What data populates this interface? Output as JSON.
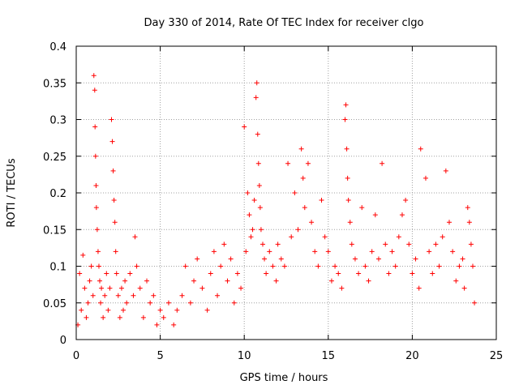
{
  "chart_data": {
    "type": "scatter",
    "title": "Day 330 of 2014, Rate Of TEC Index for receiver clgo",
    "xlabel": "GPS time / hours",
    "ylabel": "ROTI / TECUs",
    "xlim": [
      0,
      25
    ],
    "ylim": [
      0,
      0.4
    ],
    "grid": true,
    "marker": "+",
    "color": "#ff0000",
    "x_ticks": [
      0,
      5,
      10,
      15,
      20,
      25
    ],
    "x_tick_labels": [
      "0",
      "5",
      "10",
      "15",
      "20",
      "25"
    ],
    "y_ticks": [
      0,
      0.05,
      0.1,
      0.15,
      0.2,
      0.25,
      0.3,
      0.35,
      0.4
    ],
    "y_tick_labels": [
      "0",
      "0.05",
      "0.1",
      "0.15",
      "0.2",
      "0.25",
      "0.3",
      "0.35",
      "0.4"
    ],
    "series": [
      {
        "name": "ROTI",
        "points": [
          [
            0.1,
            0.02
          ],
          [
            0.2,
            0.09
          ],
          [
            0.3,
            0.04
          ],
          [
            0.4,
            0.115
          ],
          [
            0.5,
            0.07
          ],
          [
            0.6,
            0.03
          ],
          [
            0.7,
            0.05
          ],
          [
            0.8,
            0.08
          ],
          [
            0.9,
            0.1
          ],
          [
            1.0,
            0.06
          ],
          [
            1.05,
            0.36
          ],
          [
            1.1,
            0.34
          ],
          [
            1.12,
            0.29
          ],
          [
            1.15,
            0.25
          ],
          [
            1.18,
            0.21
          ],
          [
            1.2,
            0.18
          ],
          [
            1.25,
            0.15
          ],
          [
            1.3,
            0.12
          ],
          [
            1.35,
            0.1
          ],
          [
            1.4,
            0.08
          ],
          [
            1.45,
            0.05
          ],
          [
            1.5,
            0.07
          ],
          [
            1.6,
            0.03
          ],
          [
            1.7,
            0.06
          ],
          [
            1.8,
            0.09
          ],
          [
            1.9,
            0.04
          ],
          [
            2.0,
            0.07
          ],
          [
            2.1,
            0.3
          ],
          [
            2.15,
            0.27
          ],
          [
            2.2,
            0.23
          ],
          [
            2.25,
            0.19
          ],
          [
            2.3,
            0.16
          ],
          [
            2.35,
            0.12
          ],
          [
            2.4,
            0.09
          ],
          [
            2.5,
            0.06
          ],
          [
            2.6,
            0.03
          ],
          [
            2.7,
            0.07
          ],
          [
            2.8,
            0.04
          ],
          [
            2.9,
            0.08
          ],
          [
            3.0,
            0.05
          ],
          [
            3.2,
            0.09
          ],
          [
            3.4,
            0.06
          ],
          [
            3.5,
            0.14
          ],
          [
            3.6,
            0.1
          ],
          [
            3.8,
            0.07
          ],
          [
            4.0,
            0.03
          ],
          [
            4.2,
            0.08
          ],
          [
            4.4,
            0.05
          ],
          [
            4.6,
            0.06
          ],
          [
            4.8,
            0.02
          ],
          [
            5.0,
            0.04
          ],
          [
            5.2,
            0.03
          ],
          [
            5.5,
            0.05
          ],
          [
            5.8,
            0.02
          ],
          [
            6.0,
            0.04
          ],
          [
            6.3,
            0.06
          ],
          [
            6.5,
            0.1
          ],
          [
            6.8,
            0.05
          ],
          [
            7.0,
            0.08
          ],
          [
            7.2,
            0.11
          ],
          [
            7.5,
            0.07
          ],
          [
            7.8,
            0.04
          ],
          [
            8.0,
            0.09
          ],
          [
            8.2,
            0.12
          ],
          [
            8.4,
            0.06
          ],
          [
            8.6,
            0.1
          ],
          [
            8.8,
            0.13
          ],
          [
            9.0,
            0.08
          ],
          [
            9.2,
            0.11
          ],
          [
            9.4,
            0.05
          ],
          [
            9.6,
            0.09
          ],
          [
            9.8,
            0.07
          ],
          [
            10.0,
            0.29
          ],
          [
            10.1,
            0.12
          ],
          [
            10.2,
            0.2
          ],
          [
            10.3,
            0.17
          ],
          [
            10.4,
            0.14
          ],
          [
            10.5,
            0.15
          ],
          [
            10.6,
            0.19
          ],
          [
            10.7,
            0.33
          ],
          [
            10.75,
            0.35
          ],
          [
            10.8,
            0.28
          ],
          [
            10.85,
            0.24
          ],
          [
            10.9,
            0.21
          ],
          [
            10.95,
            0.18
          ],
          [
            11.0,
            0.15
          ],
          [
            11.1,
            0.13
          ],
          [
            11.2,
            0.11
          ],
          [
            11.3,
            0.09
          ],
          [
            11.5,
            0.12
          ],
          [
            11.7,
            0.1
          ],
          [
            11.9,
            0.08
          ],
          [
            12.0,
            0.13
          ],
          [
            12.2,
            0.11
          ],
          [
            12.4,
            0.1
          ],
          [
            12.6,
            0.24
          ],
          [
            12.8,
            0.14
          ],
          [
            13.0,
            0.2
          ],
          [
            13.2,
            0.15
          ],
          [
            13.4,
            0.26
          ],
          [
            13.5,
            0.22
          ],
          [
            13.6,
            0.18
          ],
          [
            13.8,
            0.24
          ],
          [
            14.0,
            0.16
          ],
          [
            14.2,
            0.12
          ],
          [
            14.4,
            0.1
          ],
          [
            14.6,
            0.19
          ],
          [
            14.8,
            0.14
          ],
          [
            15.0,
            0.12
          ],
          [
            15.2,
            0.08
          ],
          [
            15.4,
            0.1
          ],
          [
            15.6,
            0.09
          ],
          [
            15.8,
            0.07
          ],
          [
            16.0,
            0.3
          ],
          [
            16.05,
            0.32
          ],
          [
            16.1,
            0.26
          ],
          [
            16.15,
            0.22
          ],
          [
            16.2,
            0.19
          ],
          [
            16.3,
            0.16
          ],
          [
            16.4,
            0.13
          ],
          [
            16.6,
            0.11
          ],
          [
            16.8,
            0.09
          ],
          [
            17.0,
            0.18
          ],
          [
            17.2,
            0.1
          ],
          [
            17.4,
            0.08
          ],
          [
            17.6,
            0.12
          ],
          [
            17.8,
            0.17
          ],
          [
            18.0,
            0.11
          ],
          [
            18.2,
            0.24
          ],
          [
            18.4,
            0.13
          ],
          [
            18.6,
            0.09
          ],
          [
            18.8,
            0.12
          ],
          [
            19.0,
            0.1
          ],
          [
            19.2,
            0.14
          ],
          [
            19.4,
            0.17
          ],
          [
            19.6,
            0.19
          ],
          [
            19.8,
            0.13
          ],
          [
            20.0,
            0.09
          ],
          [
            20.2,
            0.11
          ],
          [
            20.4,
            0.07
          ],
          [
            20.5,
            0.26
          ],
          [
            20.8,
            0.22
          ],
          [
            21.0,
            0.12
          ],
          [
            21.2,
            0.09
          ],
          [
            21.4,
            0.13
          ],
          [
            21.6,
            0.1
          ],
          [
            21.8,
            0.14
          ],
          [
            22.0,
            0.23
          ],
          [
            22.2,
            0.16
          ],
          [
            22.4,
            0.12
          ],
          [
            22.6,
            0.08
          ],
          [
            22.8,
            0.1
          ],
          [
            23.0,
            0.11
          ],
          [
            23.1,
            0.07
          ],
          [
            23.3,
            0.18
          ],
          [
            23.4,
            0.16
          ],
          [
            23.5,
            0.13
          ],
          [
            23.6,
            0.1
          ],
          [
            23.7,
            0.05
          ]
        ]
      }
    ]
  }
}
